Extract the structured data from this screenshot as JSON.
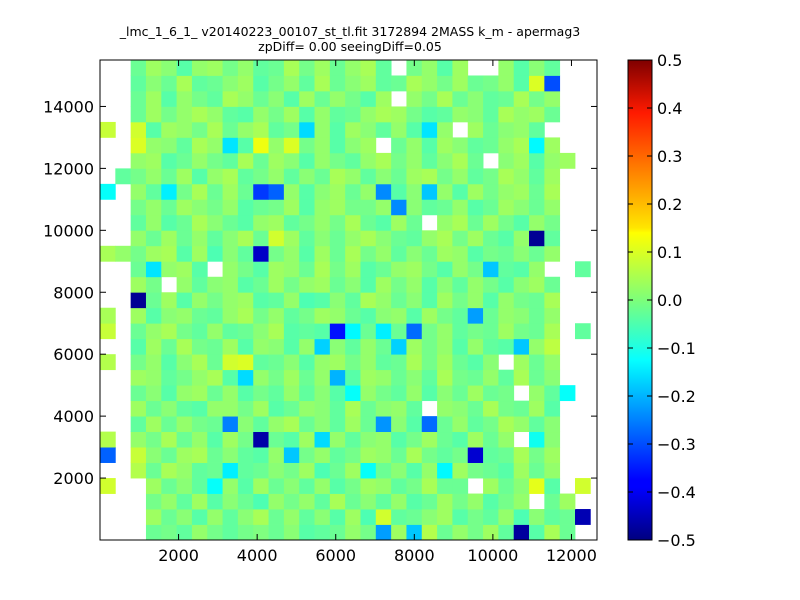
{
  "chart_data": {
    "type": "heatmap",
    "title_line1": "_lmc_1_6_1_ v20140223_00107_st_tl.fit 3172894 2MASS k_m - apermag3",
    "title_line2": "zpDiff= 0.00 seeingDiff=0.05",
    "xlabel": "",
    "ylabel": "",
    "xlim": [
      0,
      12650
    ],
    "ylim": [
      0,
      15500
    ],
    "x_ticks": [
      2000,
      4000,
      6000,
      8000,
      10000,
      12000
    ],
    "y_ticks": [
      2000,
      4000,
      6000,
      8000,
      10000,
      12000,
      14000
    ],
    "grid": false,
    "colormap": "jet",
    "colorbar": {
      "vmin": -0.5,
      "vmax": 0.5,
      "ticks": [
        0.5,
        0.4,
        0.3,
        0.2,
        0.1,
        0.0,
        -0.1,
        -0.2,
        -0.3,
        -0.4,
        -0.5
      ],
      "tick_labels": [
        "0.5",
        "0.4",
        "0.3",
        "0.2",
        "0.1",
        "0.0",
        "−0.1",
        "−0.2",
        "−0.3",
        "−0.4",
        "−0.5"
      ]
    },
    "bins": {
      "x_start": 0,
      "x_step": 390,
      "y_start": 0,
      "y_step": 500,
      "cols": 32,
      "rows": 31
    },
    "values": [
      [
        null,
        null,
        null,
        -0.02,
        -0.01,
        -0.03,
        0.02,
        -0.01,
        -0.03,
        -0.01,
        0.0,
        -0.02,
        0.01,
        -0.04,
        -0.03,
        -0.02,
        0.02,
        -0.01,
        -0.22,
        0.03,
        -0.18,
        0.05,
        -0.02,
        0.02,
        -0.01,
        0.03,
        -0.03,
        -0.47,
        -0.04,
        0.04,
        -0.02,
        null
      ],
      [
        null,
        null,
        null,
        0.03,
        -0.02,
        0.01,
        -0.04,
        0.02,
        -0.03,
        0.01,
        0.04,
        -0.02,
        0.02,
        -0.03,
        0.01,
        -0.04,
        0.03,
        -0.05,
        0.08,
        -0.03,
        -0.02,
        0.01,
        0.03,
        -0.04,
        -0.01,
        -0.03,
        0.02,
        -0.05,
        0.01,
        -0.03,
        -0.02,
        -0.45
      ],
      [
        null,
        null,
        null,
        -0.01,
        0.02,
        -0.03,
        0.03,
        -0.04,
        0.01,
        -0.02,
        -0.05,
        0.02,
        -0.01,
        0.02,
        -0.03,
        0.04,
        -0.02,
        0.01,
        -0.03,
        0.02,
        -0.04,
        -0.02,
        0.03,
        -0.01,
        0.02,
        -0.04,
        -0.01,
        0.02,
        null,
        -0.02,
        0.03,
        null
      ],
      [
        0.08,
        null,
        null,
        0.03,
        -0.02,
        0.01,
        -0.03,
        -0.12,
        0.02,
        -0.04,
        0.03,
        -0.02,
        0.01,
        -0.03,
        0.02,
        -0.04,
        -0.01,
        0.03,
        0.02,
        -0.03,
        -0.01,
        0.04,
        -0.02,
        -0.02,
        null,
        0.03,
        -0.02,
        0.01,
        0.1,
        -0.04,
        null,
        0.08
      ],
      [
        null,
        null,
        0.05,
        -0.02,
        0.04,
        0.02,
        -0.03,
        -0.02,
        -0.14,
        -0.03,
        -0.02,
        0.01,
        -0.01,
        0.03,
        -0.05,
        -0.02,
        0.03,
        -0.12,
        -0.02,
        0.01,
        -0.04,
        0.02,
        -0.13,
        0.03,
        -0.01,
        -0.02,
        -0.04,
        0.03,
        -0.02,
        0.02,
        null,
        null
      ],
      [
        -0.28,
        null,
        0.07,
        0.01,
        -0.02,
        0.03,
        0.04,
        -0.02,
        0.01,
        -0.03,
        -0.04,
        0.02,
        -0.18,
        -0.01,
        0.02,
        -0.03,
        -0.01,
        0.03,
        0.02,
        -0.02,
        0.04,
        -0.01,
        -0.03,
        -0.01,
        -0.42,
        -0.03,
        -0.02,
        0.04,
        -0.01,
        0.03,
        null,
        null
      ],
      [
        0.05,
        null,
        0.02,
        -0.01,
        0.04,
        -0.02,
        0.02,
        -0.04,
        0.03,
        -0.01,
        -0.46,
        -0.02,
        -0.04,
        0.03,
        -0.16,
        0.02,
        -0.03,
        0.01,
        0.02,
        -0.04,
        -0.01,
        0.03,
        -0.02,
        -0.04,
        0.03,
        -0.02,
        0.02,
        null,
        -0.11,
        0.01,
        null,
        null
      ],
      [
        null,
        null,
        -0.03,
        0.03,
        -0.02,
        0.02,
        -0.01,
        -0.02,
        -0.25,
        0.01,
        -0.03,
        0.02,
        0.04,
        -0.02,
        0.01,
        -0.03,
        0.03,
        -0.02,
        -0.23,
        0.01,
        -0.04,
        -0.27,
        -0.02,
        0.02,
        -0.03,
        -0.01,
        0.04,
        0.02,
        -0.03,
        0.01,
        null,
        null
      ],
      [
        null,
        null,
        0.03,
        -0.02,
        0.01,
        -0.03,
        -0.04,
        0.02,
        0.02,
        -0.01,
        0.03,
        -0.04,
        -0.02,
        0.02,
        0.01,
        -0.03,
        0.04,
        -0.02,
        0.01,
        0.02,
        -0.03,
        null,
        0.02,
        0.01,
        -0.02,
        0.04,
        -0.01,
        -0.02,
        0.03,
        -0.04,
        null,
        null
      ],
      [
        null,
        null,
        -0.02,
        0.01,
        -0.04,
        0.02,
        0.03,
        -0.02,
        0.02,
        -0.04,
        -0.01,
        -0.03,
        0.02,
        -0.03,
        0.01,
        -0.04,
        -0.12,
        0.02,
        -0.01,
        -0.03,
        0.02,
        -0.04,
        0.01,
        -0.02,
        0.03,
        -0.02,
        -0.01,
        null,
        0.02,
        -0.03,
        -0.12,
        null
      ],
      [
        null,
        null,
        0.03,
        0.02,
        -0.03,
        -0.01,
        0.02,
        0.04,
        -0.04,
        -0.16,
        0.02,
        -0.01,
        0.03,
        -0.02,
        0.02,
        -0.2,
        -0.04,
        0.03,
        0.02,
        -0.02,
        0.01,
        -0.03,
        0.04,
        -0.01,
        -0.02,
        0.02,
        -0.03,
        0.04,
        -0.02,
        0.01,
        null,
        null
      ],
      [
        0.05,
        null,
        -0.01,
        0.02,
        -0.04,
        0.01,
        0.04,
        -0.02,
        0.08,
        0.09,
        -0.03,
        -0.02,
        0.01,
        -0.04,
        0.02,
        0.03,
        -0.01,
        0.02,
        -0.03,
        -0.02,
        0.04,
        -0.01,
        0.03,
        -0.02,
        -0.04,
        0.01,
        null,
        0.03,
        -0.02,
        0.02,
        null,
        null
      ],
      [
        null,
        null,
        -0.04,
        0.03,
        -0.02,
        0.04,
        -0.01,
        -0.02,
        0.03,
        -0.04,
        0.02,
        0.01,
        -0.04,
        0.02,
        -0.17,
        0.01,
        -0.03,
        0.02,
        -0.02,
        -0.17,
        0.03,
        -0.01,
        0.02,
        -0.04,
        0.02,
        -0.03,
        -0.04,
        -0.18,
        0.02,
        0.06,
        null,
        null
      ],
      [
        0.07,
        null,
        -0.02,
        0.02,
        0.04,
        -0.01,
        -0.03,
        0.02,
        -0.03,
        -0.02,
        0.01,
        0.04,
        -0.04,
        -0.03,
        -0.04,
        -0.36,
        -0.13,
        -0.02,
        -0.14,
        -0.02,
        -0.27,
        -0.01,
        0.02,
        -0.03,
        -0.01,
        -0.02,
        0.03,
        -0.01,
        -0.02,
        0.04,
        null,
        -0.03
      ],
      [
        0.04,
        null,
        0.03,
        -0.04,
        0.01,
        0.02,
        -0.02,
        -0.03,
        0.02,
        0.04,
        -0.01,
        0.02,
        -0.03,
        -0.01,
        0.03,
        0.02,
        -0.02,
        -0.04,
        0.01,
        0.02,
        -0.04,
        0.03,
        -0.01,
        -0.03,
        -0.22,
        -0.02,
        0.02,
        0.01,
        -0.02,
        0.02,
        null,
        null
      ],
      [
        null,
        null,
        -0.48,
        -0.02,
        0.03,
        -0.04,
        0.02,
        -0.01,
        0.02,
        0.03,
        -0.04,
        -0.03,
        0.02,
        -0.05,
        -0.04,
        0.01,
        -0.03,
        0.04,
        0.02,
        -0.02,
        0.01,
        -0.04,
        0.03,
        -0.01,
        0.02,
        -0.04,
        0.02,
        -0.01,
        -0.02,
        0.04,
        null,
        null
      ],
      [
        null,
        null,
        0.03,
        -0.01,
        null,
        0.02,
        -0.03,
        0.01,
        0.02,
        -0.04,
        -0.02,
        0.03,
        -0.01,
        0.02,
        0.03,
        -0.02,
        0.01,
        -0.04,
        0.03,
        -0.01,
        0.02,
        -0.04,
        0.01,
        -0.03,
        0.02,
        -0.01,
        -0.04,
        0.01,
        0.03,
        -0.02,
        null,
        null
      ],
      [
        null,
        null,
        -0.02,
        -0.15,
        0.02,
        0.03,
        -0.04,
        null,
        0.02,
        -0.01,
        -0.04,
        0.03,
        0.02,
        -0.02,
        0.04,
        -0.01,
        0.03,
        -0.04,
        -0.02,
        0.02,
        0.03,
        -0.01,
        -0.04,
        0.02,
        -0.01,
        -0.18,
        -0.03,
        -0.04,
        0.02,
        null,
        null,
        -0.03
      ],
      [
        0.04,
        0.02,
        -0.01,
        0.03,
        0.04,
        -0.04,
        0.03,
        -0.05,
        0.01,
        -0.03,
        -0.43,
        -0.01,
        0.02,
        -0.04,
        0.03,
        -0.02,
        0.04,
        -0.01,
        0.02,
        -0.03,
        0.01,
        -0.02,
        0.03,
        0.02,
        -0.04,
        -0.01,
        -0.02,
        0.01,
        -0.02,
        0.02,
        null,
        null
      ],
      [
        null,
        null,
        0.02,
        -0.02,
        0.03,
        -0.02,
        0.02,
        -0.03,
        0.01,
        0.04,
        -0.02,
        0.08,
        0.03,
        -0.03,
        0.01,
        -0.02,
        0.02,
        0.04,
        0.01,
        -0.02,
        -0.03,
        0.02,
        0.04,
        -0.01,
        0.03,
        -0.02,
        -0.04,
        0.02,
        -0.48,
        -0.03,
        null,
        null
      ],
      [
        null,
        null,
        -0.03,
        0.02,
        -0.04,
        -0.02,
        0.04,
        0.01,
        -0.02,
        -0.04,
        0.02,
        0.03,
        -0.03,
        -0.01,
        0.02,
        -0.01,
        0.04,
        -0.02,
        -0.04,
        0.03,
        -0.02,
        null,
        0.02,
        0.04,
        -0.02,
        0.03,
        -0.01,
        -0.04,
        0.02,
        -0.01,
        null,
        null
      ],
      [
        null,
        null,
        -0.01,
        0.02,
        -0.02,
        0.03,
        0.01,
        -0.01,
        0.02,
        -0.04,
        -0.02,
        -0.01,
        0.03,
        -0.04,
        0.02,
        0.03,
        -0.01,
        -0.01,
        0.02,
        -0.24,
        0.01,
        -0.03,
        -0.02,
        0.02,
        -0.04,
        -0.02,
        0.03,
        0.01,
        -0.02,
        0.02,
        null,
        null
      ],
      [
        -0.12,
        null,
        0.02,
        -0.03,
        -0.14,
        -0.01,
        0.04,
        -0.02,
        0.03,
        -0.02,
        -0.32,
        -0.28,
        0.02,
        -0.04,
        0.01,
        0.03,
        -0.02,
        0.02,
        -0.24,
        -0.04,
        0.01,
        -0.18,
        0.02,
        -0.04,
        0.03,
        -0.01,
        0.02,
        0.03,
        -0.02,
        0.04,
        null,
        null
      ],
      [
        null,
        -0.03,
        -0.01,
        0.02,
        -0.02,
        0.03,
        -0.04,
        0.02,
        0.04,
        -0.03,
        -0.01,
        0.02,
        -0.03,
        0.01,
        -0.02,
        0.04,
        0.02,
        -0.03,
        0.01,
        -0.02,
        0.03,
        0.04,
        -0.01,
        0.02,
        -0.03,
        -0.01,
        0.04,
        0.02,
        -0.03,
        0.03,
        null,
        null
      ],
      [
        null,
        null,
        0.02,
        0.03,
        -0.04,
        -0.02,
        0.02,
        -0.01,
        -0.03,
        0.04,
        -0.02,
        0.03,
        0.01,
        -0.04,
        0.02,
        -0.01,
        -0.03,
        0.02,
        0.04,
        -0.01,
        0.02,
        -0.03,
        0.01,
        0.04,
        -0.02,
        null,
        0.01,
        0.03,
        -0.04,
        0.02,
        0.03,
        null
      ],
      [
        null,
        null,
        0.09,
        0.02,
        0.01,
        -0.03,
        0.04,
        0.02,
        -0.15,
        -0.04,
        0.11,
        0.02,
        0.09,
        -0.01,
        0.02,
        -0.04,
        0.01,
        0.03,
        null,
        -0.02,
        0.02,
        -0.04,
        0.03,
        0.01,
        -0.03,
        -0.02,
        0.02,
        0.04,
        -0.13,
        0.03,
        null,
        null
      ],
      [
        0.07,
        null,
        0.08,
        -0.04,
        0.03,
        0.02,
        -0.01,
        0.04,
        -0.02,
        0.02,
        0.04,
        -0.03,
        -0.01,
        -0.16,
        0.02,
        -0.04,
        0.03,
        0.01,
        -0.03,
        0.02,
        -0.04,
        -0.15,
        0.02,
        null,
        0.03,
        -0.02,
        0.01,
        0.02,
        -0.03,
        null,
        null,
        null
      ],
      [
        null,
        null,
        -0.02,
        0.03,
        -0.01,
        0.02,
        0.04,
        0.02,
        -0.03,
        -0.04,
        0.02,
        -0.01,
        0.03,
        -0.04,
        0.02,
        -0.03,
        -0.02,
        0.02,
        0.04,
        0.03,
        -0.01,
        -0.04,
        -0.03,
        0.02,
        0.01,
        -0.03,
        0.04,
        0.02,
        0.03,
        -0.02,
        null,
        null
      ],
      [
        null,
        null,
        -0.02,
        0.03,
        -0.04,
        0.02,
        -0.01,
        -0.03,
        0.04,
        0.02,
        -0.02,
        0.01,
        -0.04,
        0.03,
        -0.02,
        0.02,
        -0.01,
        -0.04,
        0.03,
        null,
        0.02,
        -0.01,
        0.04,
        -0.02,
        0.01,
        -0.03,
        -0.02,
        0.04,
        -0.01,
        0.02,
        null,
        null
      ],
      [
        null,
        null,
        -0.03,
        0.01,
        -0.02,
        0.04,
        -0.03,
        -0.02,
        0.01,
        0.03,
        -0.04,
        -0.01,
        0.02,
        -0.03,
        0.04,
        -0.02,
        0.01,
        0.03,
        -0.03,
        -0.02,
        0.04,
        0.02,
        -0.01,
        0.03,
        -0.02,
        -0.01,
        0.02,
        -0.04,
        0.09,
        -0.3,
        null,
        null
      ],
      [
        null,
        null,
        -0.02,
        0.03,
        0.01,
        -0.04,
        0.02,
        0.03,
        -0.01,
        0.02,
        -0.03,
        -0.02,
        0.04,
        -0.01,
        0.03,
        -0.02,
        0.02,
        0.04,
        -0.03,
        null,
        -0.01,
        0.02,
        -0.04,
        0.03,
        null,
        null,
        0.02,
        -0.04,
        0.01,
        -0.03,
        null,
        null
      ]
    ]
  }
}
